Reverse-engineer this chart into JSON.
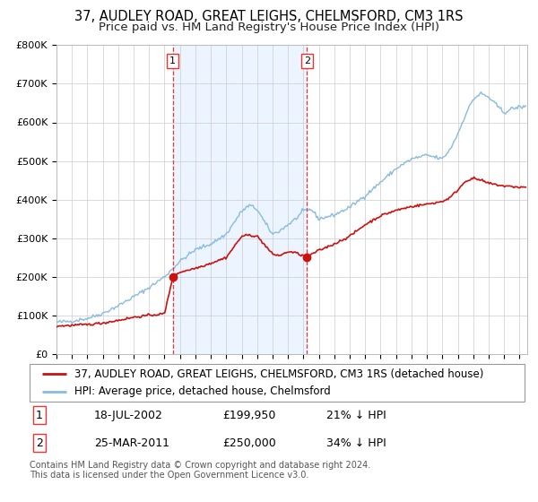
{
  "title": "37, AUDLEY ROAD, GREAT LEIGHS, CHELMSFORD, CM3 1RS",
  "subtitle": "Price paid vs. HM Land Registry's House Price Index (HPI)",
  "background_color": "#ffffff",
  "plot_bg_color": "#ffffff",
  "grid_color": "#cccccc",
  "ylim": [
    0,
    800000
  ],
  "yticks": [
    0,
    100000,
    200000,
    300000,
    400000,
    500000,
    600000,
    700000,
    800000
  ],
  "ytick_labels": [
    "£0",
    "£100K",
    "£200K",
    "£300K",
    "£400K",
    "£500K",
    "£600K",
    "£700K",
    "£800K"
  ],
  "xlim_start": 1995.0,
  "xlim_end": 2025.5,
  "transaction1_x": 2002.54,
  "transaction1_y": 199950,
  "transaction1_label": "1",
  "transaction1_date": "18-JUL-2002",
  "transaction1_price": "£199,950",
  "transaction1_hpi": "21% ↓ HPI",
  "transaction2_x": 2011.23,
  "transaction2_y": 250000,
  "transaction2_label": "2",
  "transaction2_date": "25-MAR-2011",
  "transaction2_price": "£250,000",
  "transaction2_hpi": "34% ↓ HPI",
  "shade_color": "#ddeeff",
  "vline_color": "#ee3333",
  "red_line_color": "#cc1111",
  "blue_line_color": "#88bbdd",
  "marker_color": "#cc1111",
  "legend_label1": "37, AUDLEY ROAD, GREAT LEIGHS, CHELMSFORD, CM3 1RS (detached house)",
  "legend_label2": "HPI: Average price, detached house, Chelmsford",
  "footer1": "Contains HM Land Registry data © Crown copyright and database right 2024.",
  "footer2": "This data is licensed under the Open Government Licence v3.0.",
  "title_fontsize": 10.5,
  "subtitle_fontsize": 9.5,
  "tick_fontsize": 8,
  "legend_fontsize": 8.5
}
